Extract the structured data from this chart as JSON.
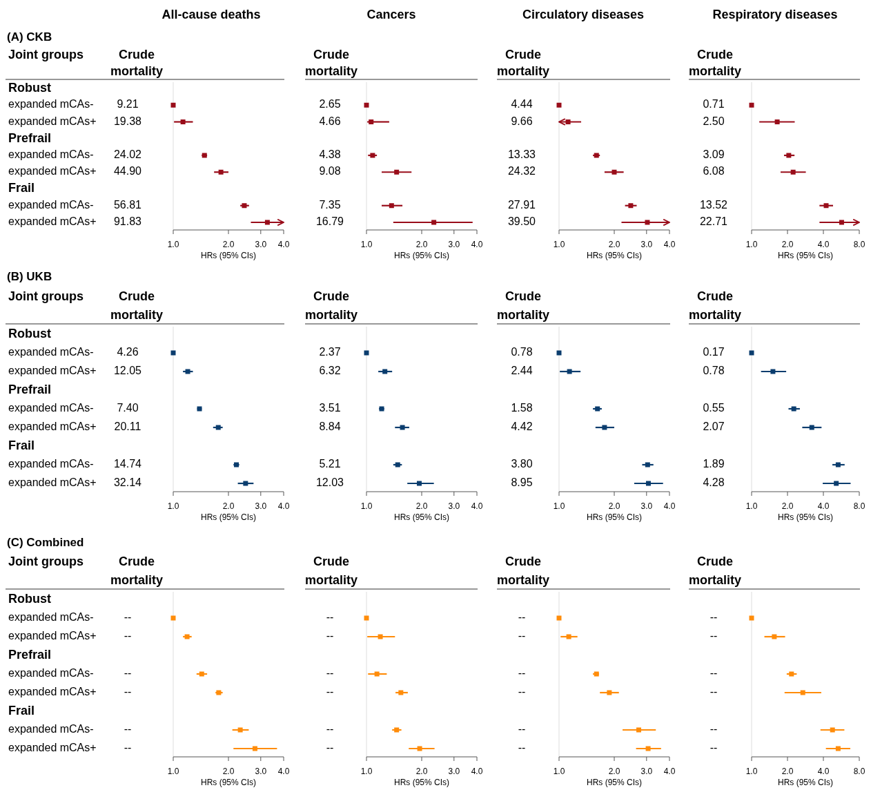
{
  "chart_data": [
    {
      "type": "scatter",
      "orientation": "horizontal",
      "title": "All-cause deaths",
      "subtitle": "(A) CKB",
      "y2label": "Joint groups",
      "ylabel": "Crude mortality",
      "xlabel": "HRs (95% CIs)",
      "log": "x",
      "marker": "square",
      "color": "#990d1a",
      "y2_categories": [
        "Robust",
        "expanded mCAs-",
        "expanded mCAs+",
        "Prefrail",
        "expanded mCAs-",
        "expanded mCAs+",
        "Frail",
        "expanded mCAs-",
        "expanded mCAs+"
      ],
      "categories": [
        null,
        "9.21",
        "19.38",
        null,
        "24.02",
        "44.90",
        null,
        "56.81",
        "91.83"
      ],
      "values": [
        null,
        1,
        1.13,
        null,
        1.48,
        1.82,
        null,
        2.44,
        3.26
      ],
      "errors": [
        null,
        null,
        [
          1.01,
          1.28
        ],
        null,
        [
          1.43,
          1.53
        ],
        [
          1.67,
          2.0
        ],
        null,
        [
          2.32,
          2.59
        ],
        [
          2.65,
          4
        ]
      ],
      "xlim": [
        1,
        4
      ],
      "xticks": [
        {
          "value": 1,
          "label": "1.0"
        },
        {
          "value": 2,
          "label": "2.0"
        },
        {
          "value": 3,
          "label": "3.0"
        },
        {
          "value": 4,
          "label": "4.0"
        }
      ]
    },
    {
      "type": "scatter",
      "orientation": "horizontal",
      "title": "Cancers",
      "ylabel": "Crude mortality",
      "xlabel": "HRs (95% CIs)",
      "log": "x",
      "marker": "square",
      "color": "#990d1a",
      "categories": [
        null,
        "2.65",
        "4.66",
        null,
        "4.38",
        "9.08",
        null,
        "7.35",
        "16.79"
      ],
      "values": [
        null,
        1,
        1.06,
        null,
        1.08,
        1.46,
        null,
        1.37,
        2.33
      ],
      "errors": [
        null,
        null,
        [
          1.01,
          1.33
        ],
        null,
        [
          1.02,
          1.14
        ],
        [
          1.21,
          1.76
        ],
        null,
        [
          1.21,
          1.57
        ],
        [
          1.4,
          3.79
        ]
      ],
      "xlim": [
        1,
        4
      ],
      "xticks": [
        {
          "value": 1,
          "label": "1.0"
        },
        {
          "value": 2,
          "label": "2.0"
        },
        {
          "value": 3,
          "label": "3.0"
        },
        {
          "value": 4,
          "label": "4.0"
        }
      ]
    },
    {
      "type": "scatter",
      "orientation": "horizontal",
      "title": "Circulatory diseases",
      "ylabel": "Crude mortality",
      "xlabel": "HRs (95% CIs)",
      "log": "x",
      "marker": "square",
      "color": "#990d1a",
      "categories": [
        null,
        "4.44",
        "9.66",
        null,
        "13.33",
        "24.32",
        null,
        "27.91",
        "39.50"
      ],
      "values": [
        null,
        1,
        1.12,
        null,
        1.6,
        2.0,
        null,
        2.46,
        3.03
      ],
      "errors": [
        null,
        null,
        [
          1,
          1.32
        ],
        null,
        [
          1.53,
          1.67
        ],
        [
          1.77,
          2.25
        ],
        null,
        [
          2.29,
          2.65
        ],
        [
          2.19,
          4
        ]
      ],
      "xlim": [
        1,
        4
      ],
      "xticks": [
        {
          "value": 1,
          "label": "1.0"
        },
        {
          "value": 2,
          "label": "2.0"
        },
        {
          "value": 3,
          "label": "3.0"
        },
        {
          "value": 4,
          "label": "4.0"
        }
      ]
    },
    {
      "type": "scatter",
      "orientation": "horizontal",
      "title": "Respiratory diseases",
      "ylabel": "Crude mortality",
      "xlabel": "HRs (95% CIs)",
      "log": "x",
      "marker": "square",
      "color": "#990d1a",
      "categories": [
        null,
        "0.71",
        "2.50",
        null,
        "3.09",
        "6.08",
        null,
        "13.52",
        "22.71"
      ],
      "values": [
        null,
        1,
        1.64,
        null,
        2.05,
        2.23,
        null,
        4.22,
        5.69
      ],
      "errors": [
        null,
        null,
        [
          1.16,
          2.3
        ],
        null,
        [
          1.87,
          2.29
        ],
        [
          1.75,
          2.85
        ],
        null,
        [
          3.71,
          4.82
        ],
        [
          3.71,
          8
        ]
      ],
      "xlim": [
        1,
        8
      ],
      "xticks": [
        {
          "value": 1,
          "label": "1.0"
        },
        {
          "value": 2,
          "label": "2.0"
        },
        {
          "value": 4,
          "label": "4.0"
        },
        {
          "value": 8,
          "label": "8.0"
        }
      ]
    },
    {
      "type": "scatter",
      "orientation": "horizontal",
      "subtitle": "(B) UKB",
      "y2label": "Joint groups",
      "ylabel": "Crude mortality",
      "xlabel": "HRs (95% CIs)",
      "log": "x",
      "marker": "square",
      "color": "#0b3d6e",
      "y2_categories": [
        "Robust",
        "expanded mCAs-",
        "expanded mCAs+",
        "Prefrail",
        "expanded mCAs-",
        "expanded mCAs+",
        "Frail",
        "expanded mCAs-",
        "expanded mCAs+"
      ],
      "categories": [
        null,
        "4.26",
        "12.05",
        null,
        "7.40",
        "20.11",
        null,
        "14.74",
        "32.14"
      ],
      "values": [
        null,
        1,
        1.2,
        null,
        1.39,
        1.76,
        null,
        2.21,
        2.48
      ],
      "errors": [
        null,
        null,
        [
          1.13,
          1.28
        ],
        null,
        [
          1.35,
          1.43
        ],
        [
          1.65,
          1.86
        ],
        null,
        [
          2.13,
          2.29
        ],
        [
          2.25,
          2.74
        ]
      ],
      "xlim": [
        1,
        4
      ],
      "xticks": [
        {
          "value": 1,
          "label": "1.0"
        },
        {
          "value": 2,
          "label": "2.0"
        },
        {
          "value": 3,
          "label": "3.0"
        },
        {
          "value": 4,
          "label": "4.0"
        }
      ]
    },
    {
      "type": "scatter",
      "orientation": "horizontal",
      "ylabel": "Crude mortality",
      "xlabel": "HRs (95% CIs)",
      "log": "x",
      "marker": "square",
      "color": "#0b3d6e",
      "categories": [
        null,
        "2.37",
        "6.32",
        null,
        "3.51",
        "8.84",
        null,
        "5.21",
        "12.03"
      ],
      "values": [
        null,
        1,
        1.26,
        null,
        1.21,
        1.57,
        null,
        1.48,
        1.94
      ],
      "errors": [
        null,
        null,
        [
          1.16,
          1.38
        ],
        null,
        [
          1.17,
          1.25
        ],
        [
          1.43,
          1.71
        ],
        null,
        [
          1.4,
          1.56
        ],
        [
          1.67,
          2.33
        ]
      ],
      "xlim": [
        1,
        4
      ],
      "xticks": [
        {
          "value": 1,
          "label": "1.0"
        },
        {
          "value": 2,
          "label": "2.0"
        },
        {
          "value": 3,
          "label": "3.0"
        },
        {
          "value": 4,
          "label": "4.0"
        }
      ]
    },
    {
      "type": "scatter",
      "orientation": "horizontal",
      "ylabel": "Crude mortality",
      "xlabel": "HRs (95% CIs)",
      "log": "x",
      "marker": "square",
      "color": "#0b3d6e",
      "categories": [
        null,
        "0.78",
        "2.44",
        null,
        "1.58",
        "4.42",
        null,
        "3.80",
        "8.95"
      ],
      "values": [
        null,
        1,
        1.14,
        null,
        1.62,
        1.77,
        null,
        3.04,
        3.07
      ],
      "errors": [
        null,
        null,
        [
          1.01,
          1.31
        ],
        null,
        [
          1.53,
          1.71
        ],
        [
          1.58,
          2.0
        ],
        null,
        [
          2.84,
          3.27
        ],
        [
          2.57,
          3.69
        ]
      ],
      "xlim": [
        1,
        4
      ],
      "xticks": [
        {
          "value": 1,
          "label": "1.0"
        },
        {
          "value": 2,
          "label": "2.0"
        },
        {
          "value": 3,
          "label": "3.0"
        },
        {
          "value": 4,
          "label": "4.0"
        }
      ]
    },
    {
      "type": "scatter",
      "orientation": "horizontal",
      "ylabel": "Crude mortality",
      "xlabel": "HRs (95% CIs)",
      "log": "x",
      "marker": "square",
      "color": "#0b3d6e",
      "categories": [
        null,
        "0.17",
        "0.78",
        null,
        "0.55",
        "2.07",
        null,
        "1.89",
        "4.28"
      ],
      "values": [
        null,
        1,
        1.51,
        null,
        2.26,
        3.2,
        null,
        5.32,
        5.13
      ],
      "errors": [
        null,
        null,
        [
          1.2,
          1.95
        ],
        null,
        [
          2.04,
          2.54
        ],
        [
          2.66,
          3.86
        ],
        null,
        [
          4.76,
          6.03
        ],
        [
          3.95,
          6.77
        ]
      ],
      "xlim": [
        1,
        8
      ],
      "xticks": [
        {
          "value": 1,
          "label": "1.0"
        },
        {
          "value": 2,
          "label": "2.0"
        },
        {
          "value": 4,
          "label": "4.0"
        },
        {
          "value": 8,
          "label": "8.0"
        }
      ]
    },
    {
      "type": "scatter",
      "orientation": "horizontal",
      "subtitle": "(C) Combined",
      "y2label": "Joint groups",
      "ylabel": "Crude mortality",
      "xlabel": "HRs (95% CIs)",
      "log": "x",
      "marker": "square",
      "color": "#ff8c0a",
      "y2_categories": [
        "Robust",
        "expanded mCAs-",
        "expanded mCAs+",
        "Prefrail",
        "expanded mCAs-",
        "expanded mCAs+",
        "Frail",
        "expanded mCAs-",
        "expanded mCAs+"
      ],
      "categories": [
        null,
        "--",
        "--",
        null,
        "--",
        "--",
        null,
        "--",
        "--"
      ],
      "values": [
        null,
        1,
        1.19,
        null,
        1.43,
        1.77,
        null,
        2.32,
        2.79
      ],
      "errors": [
        null,
        null,
        [
          1.13,
          1.26
        ],
        null,
        [
          1.34,
          1.53
        ],
        [
          1.7,
          1.86
        ],
        null,
        [
          2.1,
          2.58
        ],
        [
          2.13,
          3.68
        ]
      ],
      "xlim": [
        1,
        4
      ],
      "xticks": [
        {
          "value": 1,
          "label": "1.0"
        },
        {
          "value": 2,
          "label": "2.0"
        },
        {
          "value": 3,
          "label": "3.0"
        },
        {
          "value": 4,
          "label": "4.0"
        }
      ]
    },
    {
      "type": "scatter",
      "orientation": "horizontal",
      "ylabel": "Crude mortality",
      "xlabel": "HRs (95% CIs)",
      "log": "x",
      "marker": "square",
      "color": "#ff8c0a",
      "categories": [
        null,
        "--",
        "--",
        null,
        "--",
        "--",
        null,
        "--",
        "--"
      ],
      "values": [
        null,
        1,
        1.19,
        null,
        1.14,
        1.54,
        null,
        1.46,
        1.95
      ],
      "errors": [
        null,
        null,
        [
          1.01,
          1.43
        ],
        null,
        [
          1.02,
          1.29
        ],
        [
          1.44,
          1.68
        ],
        null,
        [
          1.38,
          1.55
        ],
        [
          1.7,
          2.35
        ]
      ],
      "xlim": [
        1,
        4
      ],
      "xticks": [
        {
          "value": 1,
          "label": "1.0"
        },
        {
          "value": 2,
          "label": "2.0"
        },
        {
          "value": 3,
          "label": "3.0"
        },
        {
          "value": 4,
          "label": "4.0"
        }
      ]
    },
    {
      "type": "scatter",
      "orientation": "horizontal",
      "ylabel": "Crude mortality",
      "xlabel": "HRs (95% CIs)",
      "log": "x",
      "marker": "square",
      "color": "#ff8c0a",
      "categories": [
        null,
        "--",
        "--",
        null,
        "--",
        "--",
        null,
        "--",
        "--"
      ],
      "values": [
        null,
        1,
        1.13,
        null,
        1.6,
        1.88,
        null,
        2.72,
        3.06
      ],
      "errors": [
        null,
        null,
        [
          1.02,
          1.26
        ],
        null,
        [
          1.53,
          1.65
        ],
        [
          1.67,
          2.12
        ],
        null,
        [
          2.22,
          3.37
        ],
        [
          2.63,
          3.6
        ]
      ],
      "xlim": [
        1,
        4
      ],
      "xticks": [
        {
          "value": 1,
          "label": "1.0"
        },
        {
          "value": 2,
          "label": "2.0"
        },
        {
          "value": 3,
          "label": "3.0"
        },
        {
          "value": 4,
          "label": "4.0"
        }
      ]
    },
    {
      "type": "scatter",
      "orientation": "horizontal",
      "ylabel": "Crude mortality",
      "xlabel": "HRs (95% CIs)",
      "log": "x",
      "marker": "square",
      "color": "#ff8c0a",
      "categories": [
        null,
        "--",
        "--",
        null,
        "--",
        "--",
        null,
        "--",
        "--"
      ],
      "values": [
        null,
        1,
        1.55,
        null,
        2.16,
        2.69,
        null,
        4.77,
        5.32
      ],
      "errors": [
        null,
        null,
        [
          1.28,
          1.91
        ],
        null,
        [
          1.97,
          2.39
        ],
        [
          1.89,
          3.84
        ],
        null,
        [
          3.78,
          6.0
        ],
        [
          4.2,
          6.73
        ]
      ],
      "xlim": [
        1,
        8
      ],
      "xticks": [
        {
          "value": 1,
          "label": "1.0"
        },
        {
          "value": 2,
          "label": "2.0"
        },
        {
          "value": 4,
          "label": "4.0"
        },
        {
          "value": 8,
          "label": "8.0"
        }
      ]
    }
  ]
}
